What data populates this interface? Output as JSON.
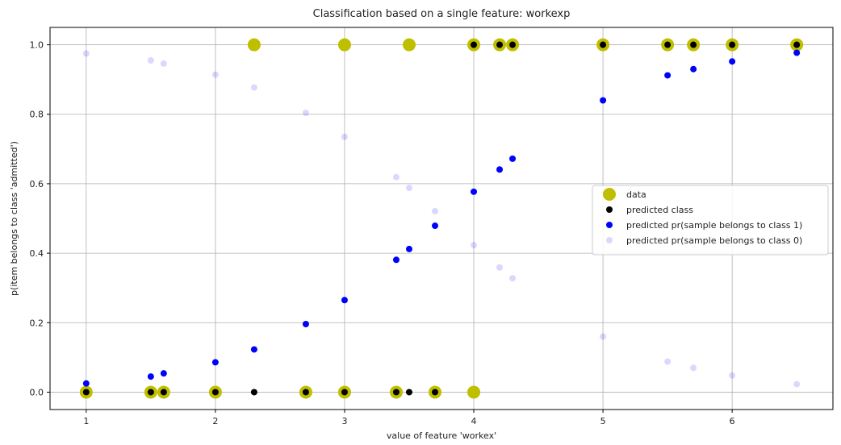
{
  "chart_data": {
    "type": "scatter",
    "title": "Classification based on a single feature: workexp",
    "xlabel": "value of feature 'workex'",
    "ylabel": "p(item belongs to class 'admitted')",
    "xlim": [
      0.72,
      6.78
    ],
    "ylim": [
      -0.05,
      1.05
    ],
    "x_ticks": [
      1,
      2,
      3,
      4,
      5,
      6
    ],
    "y_ticks": [
      0.0,
      0.2,
      0.4,
      0.6,
      0.8,
      1.0
    ],
    "y_tick_labels": [
      "0.0",
      "0.2",
      "0.4",
      "0.6",
      "0.8",
      "1.0"
    ],
    "grid": true,
    "legend_position": "center-right",
    "series": [
      {
        "name": "data",
        "color": "#bfbf00",
        "marker": "large-circle",
        "points": [
          [
            1.0,
            0
          ],
          [
            1.5,
            0
          ],
          [
            1.6,
            0
          ],
          [
            2.0,
            0
          ],
          [
            2.3,
            1
          ],
          [
            2.7,
            0
          ],
          [
            3.0,
            1
          ],
          [
            3.0,
            0
          ],
          [
            3.4,
            0
          ],
          [
            3.5,
            1
          ],
          [
            3.7,
            0
          ],
          [
            4.0,
            1
          ],
          [
            4.0,
            0
          ],
          [
            4.2,
            1
          ],
          [
            4.3,
            1
          ],
          [
            5.0,
            1
          ],
          [
            5.5,
            1
          ],
          [
            5.7,
            1
          ],
          [
            6.0,
            1
          ],
          [
            6.5,
            1
          ]
        ]
      },
      {
        "name": "predicted class",
        "color": "#000000",
        "marker": "circle",
        "points": [
          [
            1.0,
            0
          ],
          [
            1.5,
            0
          ],
          [
            1.6,
            0
          ],
          [
            2.0,
            0
          ],
          [
            2.3,
            0
          ],
          [
            2.7,
            0
          ],
          [
            3.0,
            0
          ],
          [
            3.4,
            0
          ],
          [
            3.5,
            0
          ],
          [
            3.7,
            0
          ],
          [
            4.0,
            1
          ],
          [
            4.2,
            1
          ],
          [
            4.3,
            1
          ],
          [
            5.0,
            1
          ],
          [
            5.5,
            1
          ],
          [
            5.7,
            1
          ],
          [
            6.0,
            1
          ],
          [
            6.5,
            1
          ]
        ]
      },
      {
        "name": "predicted pr(sample belongs to class 1)",
        "color": "#0000ff",
        "marker": "circle",
        "points": [
          [
            1.0,
            0.025
          ],
          [
            1.5,
            0.045
          ],
          [
            1.6,
            0.054
          ],
          [
            2.0,
            0.086
          ],
          [
            2.3,
            0.123
          ],
          [
            2.7,
            0.196
          ],
          [
            3.0,
            0.265
          ],
          [
            3.4,
            0.381
          ],
          [
            3.5,
            0.412
          ],
          [
            3.7,
            0.479
          ],
          [
            4.0,
            0.577
          ],
          [
            4.2,
            0.641
          ],
          [
            4.3,
            0.672
          ],
          [
            5.0,
            0.84
          ],
          [
            5.5,
            0.912
          ],
          [
            5.7,
            0.93
          ],
          [
            6.0,
            0.952
          ],
          [
            6.5,
            0.977
          ]
        ]
      },
      {
        "name": "predicted pr(sample belongs to class 0)",
        "color": "#0000ff",
        "opacity": 0.15,
        "marker": "circle",
        "points": [
          [
            1.0,
            0.975
          ],
          [
            1.5,
            0.955
          ],
          [
            1.6,
            0.946
          ],
          [
            2.0,
            0.914
          ],
          [
            2.3,
            0.877
          ],
          [
            2.7,
            0.804
          ],
          [
            3.0,
            0.735
          ],
          [
            3.4,
            0.619
          ],
          [
            3.5,
            0.588
          ],
          [
            3.7,
            0.521
          ],
          [
            4.0,
            0.423
          ],
          [
            4.2,
            0.359
          ],
          [
            4.3,
            0.328
          ],
          [
            5.0,
            0.16
          ],
          [
            5.5,
            0.088
          ],
          [
            5.7,
            0.07
          ],
          [
            6.0,
            0.048
          ],
          [
            6.5,
            0.023
          ]
        ]
      }
    ]
  }
}
